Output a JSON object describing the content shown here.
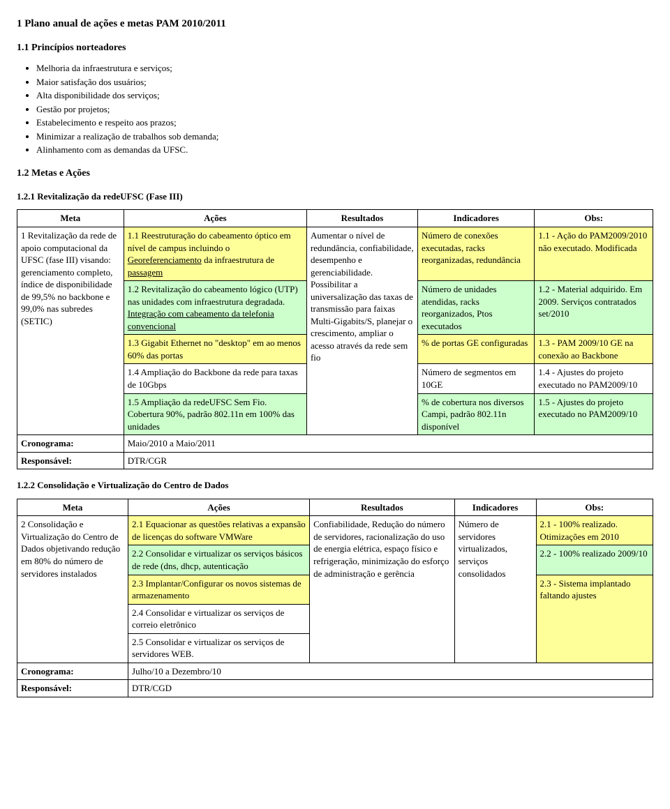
{
  "colors": {
    "yellow_bg": "#ffff99",
    "green_bg": "#ccffcc",
    "white_bg": "#ffffff",
    "text": "#000000",
    "border": "#000000"
  },
  "doc": {
    "title": "1   Plano anual de ações e metas PAM 2010/2011",
    "section_1_1_title": "1.1   Princípios norteadores",
    "principles": [
      "Melhoria da infraestrutura e serviços;",
      "Maior satisfação dos usuários;",
      "Alta disponibilidade dos serviços;",
      "Gestão por projetos;",
      "Estabelecimento e respeito aos prazos;",
      "Minimizar a realização de trabalhos sob demanda;",
      "Alinhamento com as demandas da UFSC."
    ],
    "section_1_2_title": "1.2   Metas e Ações",
    "section_1_2_1_title": "1.2.1   Revitalização da redeUFSC (Fase III)",
    "section_1_2_2_title": "1.2.2   Consolidação e Virtualização do Centro de Dados"
  },
  "tables": {
    "headers": [
      "Meta",
      "Ações",
      "Resultados",
      "Indicadores",
      "Obs:"
    ],
    "cronograma_label": "Cronograma:",
    "responsavel_label": "Responsável:",
    "table1": {
      "meta": "1 Revitalização da rede de apoio computacional da UFSC (fase III) visando: gerenciamento completo, índice de disponibilidade de 99,5% no backbone e 99,0% nas subredes (SETIC)",
      "resultados": "Aumentar o nível de redundância, confiabilidade, desempenho e gerenciabilidade. Possibilitar a universalização das taxas de transmissão para faixas Multi-Gigabits/S, planejar o crescimento, ampliar o acesso através da rede sem fio",
      "actions": [
        {
          "text_pre": "1.1 Reestruturação do cabeamento óptico em nível de campus incluindo o ",
          "underline1": "Georeferenciamento",
          "mid1": " da infraestrutura de ",
          "underline2": "passagem",
          "style": "yellow"
        },
        {
          "text_pre": "1.2 Revitalização do cabeamento lógico (UTP) nas unidades com infraestrutura degradada. ",
          "underline1": "Integração com cabeamento da telefonia convencional",
          "style": "green"
        },
        {
          "text_pre": "1.3 Gigabit Ethernet no \"desktop\" em ao menos 60% das portas",
          "style": "yellow"
        },
        {
          "text_pre": "1.4 Ampliação do Backbone da rede para taxas de 10Gbps",
          "style": "white"
        },
        {
          "text_pre": "1.5 Ampliação da redeUFSC Sem Fio. Cobertura 90%, padrão 802.11n em 100% das unidades",
          "style": "green"
        }
      ],
      "indicators": [
        {
          "text": "Número de conexões executadas, racks reorganizadas, redundância",
          "style": "yellow"
        },
        {
          "text": "Número de unidades atendidas, racks reorganizados, Ptos executados",
          "style": "green"
        },
        {
          "text": "% de portas GE configuradas",
          "style": "yellow"
        },
        {
          "text": "Número de segmentos em 10GE",
          "style": "white"
        },
        {
          "text": "% de cobertura nos diversos Campi, padrão 802.11n disponível",
          "style": "green"
        }
      ],
      "obs": [
        {
          "text": "1.1 - Ação do PAM2009/2010 não executado. Modificada",
          "style": "yellow"
        },
        {
          "text": "1.2 - Material adquirido. Em 2009. Serviços contratados set/2010",
          "style": "green"
        },
        {
          "text": "1.3 - PAM 2009/10 GE  na conexão ao Backbone",
          "style": "yellow"
        },
        {
          "text": "1.4 - Ajustes do projeto executado no PAM2009/10",
          "style": "white"
        },
        {
          "text": "1.5 - Ajustes do projeto executado no PAM2009/10",
          "style": "green"
        }
      ],
      "cronograma": "Maio/2010 a Maio/2011",
      "responsavel": "DTR/CGR"
    },
    "table2": {
      "meta": "2 Consolidação e Virtualização do Centro de Dados objetivando redução em 80% do número de servidores instalados",
      "resultados": "Confiabilidade, Redução do número de servidores, racionalização do uso de energia elétrica, espaço físico e refrigeração, minimização do esforço de administração e gerência",
      "indicador": "Número de servidores virtualizados, serviços consolidados",
      "actions": [
        {
          "text": "2.1 Equacionar as questões relativas a expansão de licenças do software VMWare",
          "style": "yellow"
        },
        {
          "text": "2.2 Consolidar e virtualizar os serviços básicos de rede (dns, dhcp, autenticação",
          "style": "green"
        },
        {
          "text": "2.3 Implantar/Configurar os novos sistemas de armazenamento",
          "style": "yellow"
        },
        {
          "text": "2.4 Consolidar e virtualizar os serviços de correio eletrônico",
          "style": "white"
        },
        {
          "text": "2.5 Consolidar e virtualizar os serviços de servidores WEB.",
          "style": "white"
        }
      ],
      "obs": [
        {
          "text": "2.1 - 100% realizado. Otimizações  em 2010",
          "style": "yellow"
        },
        {
          "text": "2.2 - 100% realizado 2009/10",
          "style": "green"
        },
        {
          "text": "2.3 - Sistema implantado faltando ajustes",
          "style": "yellow"
        }
      ],
      "cronograma": "Julho/10 a Dezembro/10",
      "responsavel": "DTR/CGD"
    }
  }
}
